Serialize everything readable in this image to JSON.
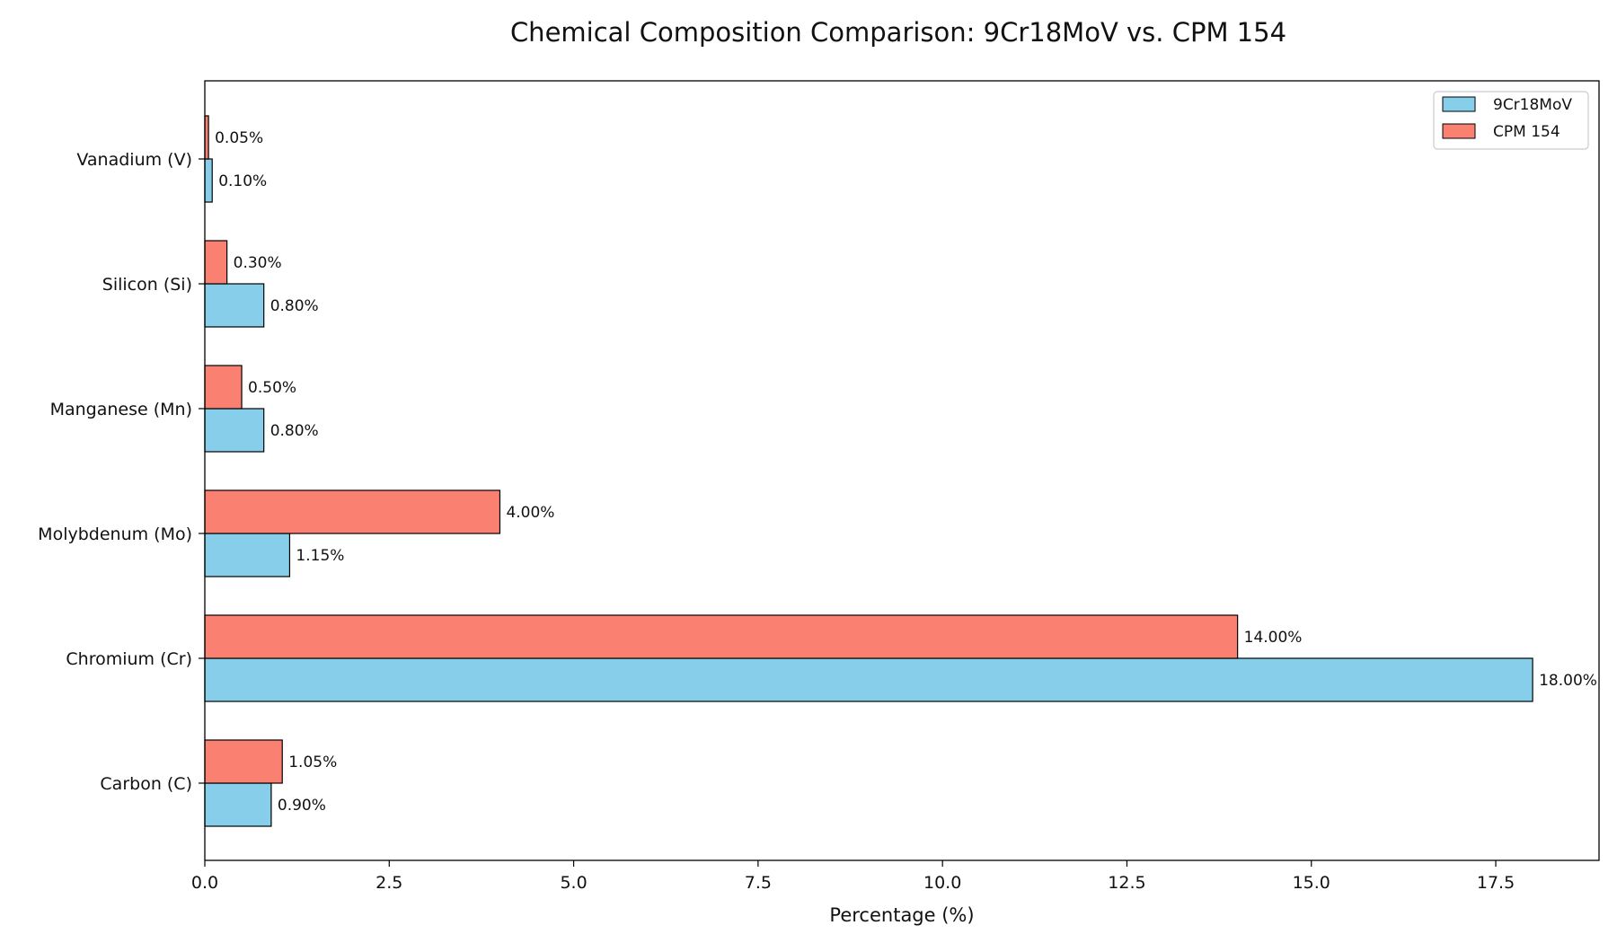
{
  "chart_data": {
    "type": "bar",
    "orientation": "horizontal",
    "title": "Chemical Composition Comparison: 9Cr18MoV vs. CPM 154",
    "xlabel": "Percentage (%)",
    "ylabel": "",
    "categories": [
      "Carbon (C)",
      "Chromium (Cr)",
      "Molybdenum (Mo)",
      "Manganese (Mn)",
      "Silicon (Si)",
      "Vanadium (V)"
    ],
    "series": [
      {
        "name": "9Cr18MoV",
        "color": "#87CEEB",
        "values": [
          0.9,
          18.0,
          1.15,
          0.8,
          0.8,
          0.1
        ],
        "labels": [
          "0.90%",
          "18.00%",
          "1.15%",
          "0.80%",
          "0.80%",
          "0.10%"
        ]
      },
      {
        "name": "CPM 154",
        "color": "#FA8072",
        "values": [
          1.05,
          14.0,
          4.0,
          0.5,
          0.3,
          0.05
        ],
        "labels": [
          "1.05%",
          "14.00%",
          "4.00%",
          "0.50%",
          "0.30%",
          "0.05%"
        ]
      }
    ],
    "xlim": [
      0,
      18.9
    ],
    "xticks": [
      0.0,
      2.5,
      5.0,
      7.5,
      10.0,
      12.5,
      15.0,
      17.5
    ],
    "xtick_labels": [
      "0.0",
      "2.5",
      "5.0",
      "7.5",
      "10.0",
      "12.5",
      "15.0",
      "17.5"
    ],
    "grid": false,
    "legend_position": "top-right"
  }
}
